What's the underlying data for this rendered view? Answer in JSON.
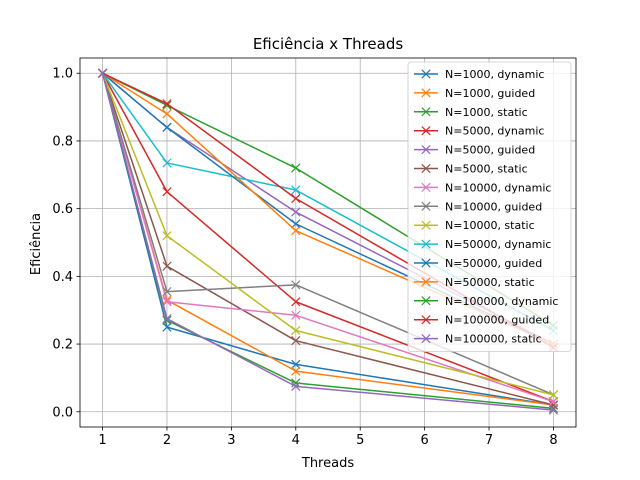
{
  "chart_data": {
    "type": "line",
    "title": "Eficiência x Threads",
    "xlabel": "Threads",
    "ylabel": "Eficiência",
    "xlim": [
      0.65,
      8.35
    ],
    "ylim": [
      -0.045,
      1.045
    ],
    "xticks": [
      1,
      2,
      3,
      4,
      5,
      6,
      7,
      8
    ],
    "yticks": [
      0.0,
      0.2,
      0.4,
      0.6,
      0.8,
      1.0
    ],
    "x": [
      1,
      2,
      4,
      8
    ],
    "grid": true,
    "legend_position": "top-right",
    "marker": "x",
    "series": [
      {
        "name": "N=1000, dynamic",
        "color": "#1f77b4",
        "values": [
          1.0,
          0.25,
          0.14,
          0.02
        ]
      },
      {
        "name": "N=1000, guided",
        "color": "#ff7f0e",
        "values": [
          1.0,
          0.33,
          0.12,
          0.02
        ]
      },
      {
        "name": "N=1000, static",
        "color": "#2ca02c",
        "values": [
          1.0,
          0.27,
          0.085,
          0.01
        ]
      },
      {
        "name": "N=5000, dynamic",
        "color": "#d62728",
        "values": [
          1.0,
          0.65,
          0.325,
          0.03
        ]
      },
      {
        "name": "N=5000, guided",
        "color": "#9467bd",
        "values": [
          1.0,
          0.84,
          0.59,
          0.2
        ]
      },
      {
        "name": "N=5000, static",
        "color": "#8c564b",
        "values": [
          1.0,
          0.43,
          0.21,
          0.02
        ]
      },
      {
        "name": "N=10000, dynamic",
        "color": "#e377c2",
        "values": [
          1.0,
          0.325,
          0.285,
          0.03
        ]
      },
      {
        "name": "N=10000, guided",
        "color": "#7f7f7f",
        "values": [
          1.0,
          0.355,
          0.375,
          0.05
        ]
      },
      {
        "name": "N=10000, static",
        "color": "#bcbd22",
        "values": [
          1.0,
          0.52,
          0.24,
          0.05
        ]
      },
      {
        "name": "N=50000, dynamic",
        "color": "#17becf",
        "values": [
          1.0,
          0.735,
          0.655,
          0.24
        ]
      },
      {
        "name": "N=50000, guided",
        "color": "#1f77b4",
        "values": [
          1.0,
          0.84,
          0.555,
          0.2
        ]
      },
      {
        "name": "N=50000, static",
        "color": "#ff7f0e",
        "values": [
          1.0,
          0.88,
          0.535,
          0.2
        ]
      },
      {
        "name": "N=100000, dynamic",
        "color": "#2ca02c",
        "values": [
          1.0,
          0.905,
          0.72,
          0.255
        ]
      },
      {
        "name": "N=100000, guided",
        "color": "#d62728",
        "values": [
          1.0,
          0.91,
          0.63,
          0.19
        ]
      },
      {
        "name": "N=100000, static",
        "color": "#9467bd",
        "values": [
          1.0,
          0.275,
          0.075,
          0.005
        ]
      }
    ]
  }
}
